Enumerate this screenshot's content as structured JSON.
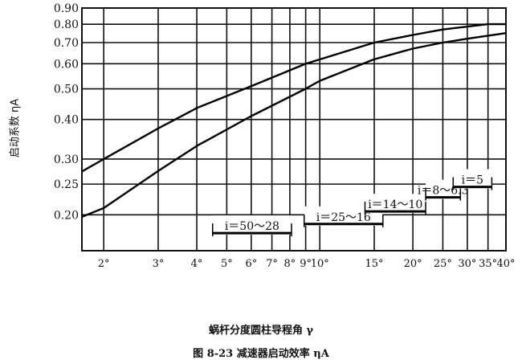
{
  "chart_data": {
    "type": "line",
    "title": "",
    "xlabel": "蜗杆分度圆柱导程角 γ",
    "ylabel": "启动系数 ηA",
    "caption": "图 8-23  减速器启动效率 ηA",
    "x_scale": "log",
    "y_scale": "log",
    "xlim": [
      1.7,
      40
    ],
    "ylim": [
      0.154,
      0.9
    ],
    "grid": true,
    "x_ticks": [
      2,
      3,
      4,
      5,
      6,
      7,
      8,
      9,
      10,
      15,
      20,
      25,
      30,
      35,
      40
    ],
    "x_tick_labels": [
      "2°",
      "3°",
      "4°",
      "5°",
      "6°",
      "7°",
      "8°",
      "9°",
      "10°",
      "15°",
      "20°",
      "25°",
      "30°",
      "35°",
      "40°"
    ],
    "y_ticks": [
      0.2,
      0.25,
      0.3,
      0.4,
      0.5,
      0.6,
      0.7,
      0.8,
      0.9
    ],
    "y_tick_labels": [
      "0.20",
      "0.25",
      "0.30",
      "0.40",
      "0.50",
      "0.60",
      "0.70",
      "0.80",
      "0.90"
    ],
    "series": [
      {
        "x": [
          1.7,
          2,
          3,
          4,
          6,
          9,
          15,
          20,
          25,
          35,
          40
        ],
        "y": [
          0.274,
          0.3,
          0.375,
          0.435,
          0.51,
          0.6,
          0.7,
          0.74,
          0.77,
          0.8,
          0.8
        ]
      },
      {
        "x": [
          1.7,
          2,
          3,
          4,
          6,
          9,
          10,
          15,
          20,
          25,
          30,
          40
        ],
        "y": [
          0.197,
          0.21,
          0.275,
          0.33,
          0.41,
          0.5,
          0.53,
          0.62,
          0.67,
          0.7,
          0.72,
          0.75
        ]
      }
    ],
    "annotations": [
      {
        "label": "i＝50～28",
        "x_range": [
          4.5,
          8.1
        ],
        "y": 0.175
      },
      {
        "label": "i＝25～16",
        "x_range": [
          8.9,
          16
        ],
        "y": 0.187
      },
      {
        "label": "i＝14～10",
        "x_range": [
          14,
          22
        ],
        "y": 0.205
      },
      {
        "label": "i＝8～6.3",
        "x_range": [
          22,
          28.5
        ],
        "y": 0.227
      },
      {
        "label": "i＝5",
        "x_range": [
          27,
          36
        ],
        "y": 0.245
      }
    ]
  }
}
